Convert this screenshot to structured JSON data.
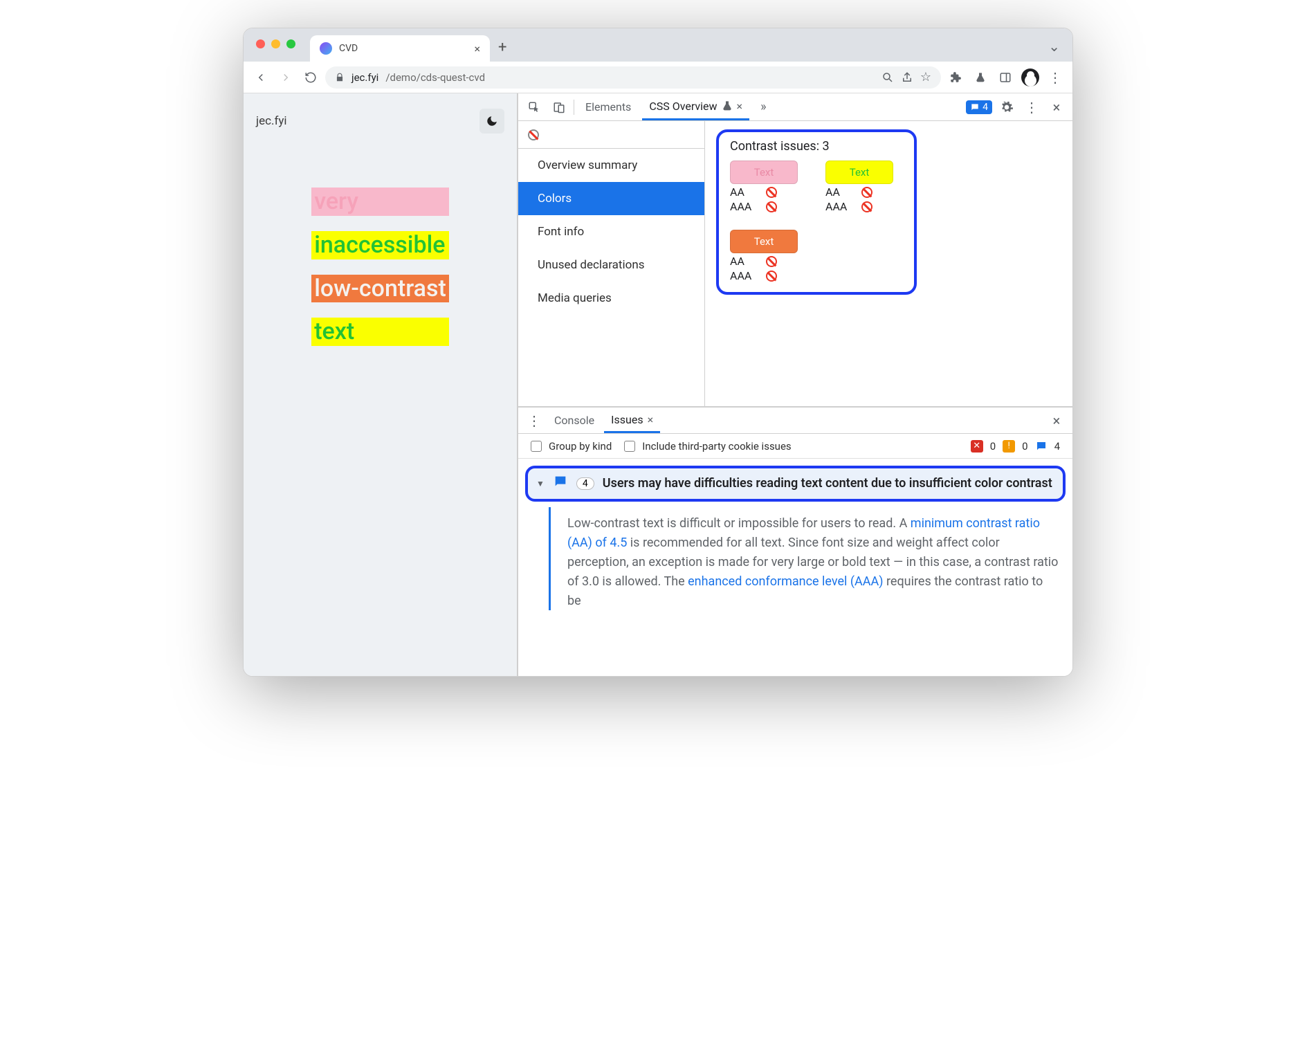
{
  "window": {
    "traffic_colors": [
      "#ff5f57",
      "#febc2e",
      "#28c840"
    ],
    "tab_title": "CVD",
    "url_host": "jec.fyi",
    "url_path": "/demo/cds-quest-cvd"
  },
  "page": {
    "site_title": "jec.fyi",
    "words": [
      {
        "text": "very",
        "color": "#f6a2b9",
        "bg": "#f8b8cb"
      },
      {
        "text": "inaccessible",
        "color": "#23c234",
        "bg": "#faff00"
      },
      {
        "text": "low-contrast",
        "color": "#f4f2ef",
        "bg": "#f0793e"
      },
      {
        "text": "text",
        "color": "#23c234",
        "bg": "#faff00"
      }
    ]
  },
  "devtools": {
    "tabs": {
      "elements": "Elements",
      "css_overview": "CSS Overview"
    },
    "issues_count": "4",
    "sidebar": {
      "items": [
        "Overview summary",
        "Colors",
        "Font info",
        "Unused declarations",
        "Media queries"
      ],
      "selected": 1
    },
    "contrast": {
      "title": "Contrast issues: 3",
      "swatches": [
        {
          "label": "Text",
          "fg": "#e98aa5",
          "bg": "#f8b8cb"
        },
        {
          "label": "Text",
          "fg": "#23c234",
          "bg": "#faff00"
        },
        {
          "label": "Text",
          "fg": "#ffffff",
          "bg": "#f0793e"
        }
      ],
      "levels": [
        "AA",
        "AAA"
      ]
    }
  },
  "drawer": {
    "tabs": {
      "console": "Console",
      "issues": "Issues"
    },
    "filters": {
      "group": "Group by kind",
      "third_party": "Include third-party cookie issues"
    },
    "counts": {
      "error": "0",
      "warn": "0",
      "info": "4"
    },
    "issue": {
      "count": "4",
      "title": "Users may have difficulties reading text content due to insufficient color contrast",
      "body_pre": "Low-contrast text is difficult or impossible for users to read. A ",
      "link1": "minimum contrast ratio (AA) of 4.5",
      "body_mid": " is recommended for all text. Since font size and weight affect color perception, an exception is made for very large or bold text — in this case, a contrast ratio of 3.0 is allowed. The ",
      "link2": "enhanced conformance level (AAA)",
      "body_post": " requires the contrast ratio to be"
    }
  }
}
